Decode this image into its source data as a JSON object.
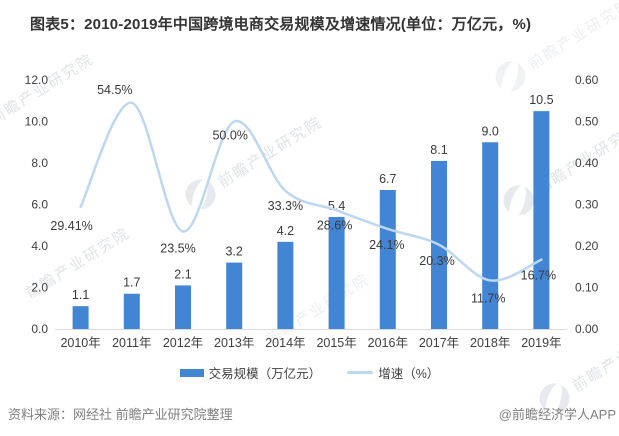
{
  "title": "图表5：2010-2019年中国跨境电商交易规模及增速情况(单位：万亿元，%)",
  "chart_data": {
    "type": "bar+line",
    "title": "图表5：2010-2019年中国跨境电商交易规模及增速情况(单位：万亿元，%)",
    "categories": [
      "2010年",
      "2011年",
      "2012年",
      "2013年",
      "2014年",
      "2015年",
      "2016年",
      "2017年",
      "2018年",
      "2019年"
    ],
    "series": [
      {
        "name": "交易规模（万亿元）",
        "kind": "bar",
        "axis": "left",
        "color": "#4285d5",
        "values": [
          1.1,
          1.7,
          2.1,
          3.2,
          4.2,
          5.4,
          6.7,
          8.1,
          9.0,
          10.5
        ],
        "labels": [
          "1.1",
          "1.7",
          "2.1",
          "3.2",
          "4.2",
          "5.4",
          "6.7",
          "8.1",
          "9.0",
          "10.5"
        ]
      },
      {
        "name": "增速（%）",
        "kind": "line",
        "axis": "right",
        "color": "#bdd7f0",
        "values": [
          29.41,
          54.5,
          23.5,
          50.0,
          33.3,
          28.6,
          24.1,
          20.3,
          11.7,
          16.7
        ],
        "labels": [
          "29.41%",
          "54.5%",
          "23.5%",
          "50.0%",
          "33.3%",
          "28.6%",
          "24.1%",
          "20.3%",
          "11.7%",
          "16.7%"
        ]
      }
    ],
    "left_axis": {
      "min": 0,
      "max": 12,
      "tick_labels": [
        "0.0",
        "2.0",
        "4.0",
        "6.0",
        "8.0",
        "10.0",
        "12.0"
      ]
    },
    "right_axis": {
      "min": 0,
      "max": 0.6,
      "tick_labels": [
        "0.00",
        "0.10",
        "0.20",
        "0.30",
        "0.40",
        "0.50",
        "0.60"
      ]
    },
    "grid": false,
    "legend_position": "bottom"
  },
  "footer": {
    "source": "资料来源：网经社 前瞻产业研究院整理",
    "brand": "@前瞻经济学人APP"
  },
  "watermark": {
    "text": "前瞻产业研究院"
  },
  "colors": {
    "bar": "#4285d5",
    "line": "#bdd7f0",
    "axis_line": "#d9d9d9",
    "tick_text": "#404040",
    "label_text": "#3a3a3a",
    "footer_text": "#808080",
    "title_text": "#333333"
  }
}
